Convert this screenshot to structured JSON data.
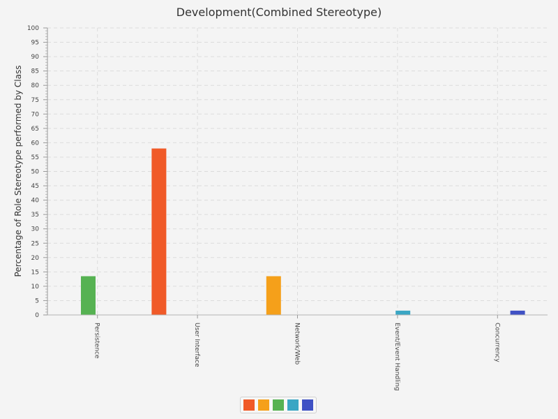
{
  "chart_data": {
    "type": "bar",
    "title": "Development(Combined Stereotype)",
    "xlabel": "",
    "ylabel": "Percentage of Role Stereotype performed by Class",
    "ylim": [
      0,
      100
    ],
    "ytick_step": 5,
    "grid": true,
    "legend_position": "bottom",
    "categories": [
      "Persistence",
      "User Interface",
      "Network/Web",
      "Event/Event Handling",
      "Concurrency"
    ],
    "series": [
      {
        "color": "#f05a28",
        "values": [
          0,
          58,
          0,
          0,
          0
        ]
      },
      {
        "color": "#f5a01a",
        "values": [
          0,
          0,
          13.5,
          0,
          0
        ]
      },
      {
        "color": "#56b252",
        "values": [
          13.5,
          0,
          0,
          0,
          0
        ]
      },
      {
        "color": "#3aa6c4",
        "values": [
          0,
          0,
          0,
          1.5,
          0
        ]
      },
      {
        "color": "#3f51c4",
        "values": [
          0,
          0,
          0,
          0,
          1.5
        ]
      }
    ]
  }
}
